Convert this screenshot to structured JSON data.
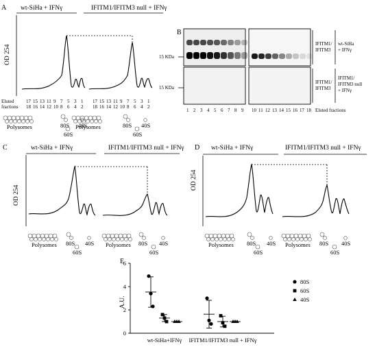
{
  "panelA": {
    "label": "A",
    "group1": "wt-SiHa + IFNγ",
    "group2": "IFITM1/IFITM3 null + IFNγ",
    "yaxis": "OD 254",
    "eluted": "Eluted",
    "fractions_word": "fractions",
    "fracs_top": [
      "17",
      "15",
      "13",
      "11",
      "9",
      "7",
      "5",
      "3",
      "1"
    ],
    "fracs_bot": [
      "18",
      "16",
      "14",
      "12",
      "10",
      "8",
      "6",
      "4",
      "2"
    ],
    "polysomes": "Polysomes",
    "s80": "80S",
    "s60": "60S",
    "s40": "40S"
  },
  "panelB": {
    "label": "B",
    "kda": "15 KDa",
    "row1_label1": "IFITM1/",
    "row1_label2": "IFITM3",
    "row1_cond1": "wt-SiHa",
    "row1_cond2": "+ IFNγ",
    "row2_label1": "IFITM1/",
    "row2_label2": "IFITM3",
    "row2_cond1": "IFITM1/",
    "row2_cond2": "IFITM3 null",
    "row2_cond3": "+ IFNγ",
    "lanes": [
      "1",
      "2",
      "3",
      "4",
      "5",
      "6",
      "7",
      "8",
      "9",
      "10",
      "11",
      "12",
      "13",
      "14",
      "15",
      "16",
      "17",
      "18"
    ],
    "lanes_suffix": "Eluted fractions"
  },
  "panelC": {
    "label": "C",
    "group1": "wt-SiHa + IFNγ",
    "group2": "IFITM1/IFITM3 null + IFNγ",
    "yaxis": "OD 254",
    "polysomes": "Polysomes",
    "s80": "80S",
    "s60": "60S",
    "s40": "40S"
  },
  "panelD": {
    "label": "D",
    "group1": "wt-SiHa + IFNγ",
    "group2": "IFITM1/IFITM3 null + IFNγ",
    "yaxis": "OD 254",
    "polysomes": "Polysomes",
    "s80": "80S",
    "s60": "60S",
    "s40": "40S"
  },
  "chart_data": {
    "type": "scatter",
    "panel_label": "E",
    "ylabel": "A.U.",
    "ylim": [
      0,
      6
    ],
    "yticks": [
      "0",
      "2",
      "4",
      "6"
    ],
    "categories": [
      "wt-SiHa+IFNγ",
      "IFITM1/IFITM3 null + IFNγ"
    ],
    "series": [
      {
        "name": "80S",
        "marker": "circle",
        "values": [
          [
            4.9,
            3.4,
            2.3
          ],
          [
            3.0,
            1.1,
            0.8
          ]
        ]
      },
      {
        "name": "60S",
        "marker": "square",
        "values": [
          [
            1.6,
            1.3,
            1.0
          ],
          [
            1.5,
            0.9,
            0.6
          ]
        ]
      },
      {
        "name": "40S",
        "marker": "triangle",
        "values": [
          [
            1.0,
            1.0,
            1.0
          ],
          [
            1.0,
            1.0,
            1.0
          ]
        ]
      }
    ]
  }
}
